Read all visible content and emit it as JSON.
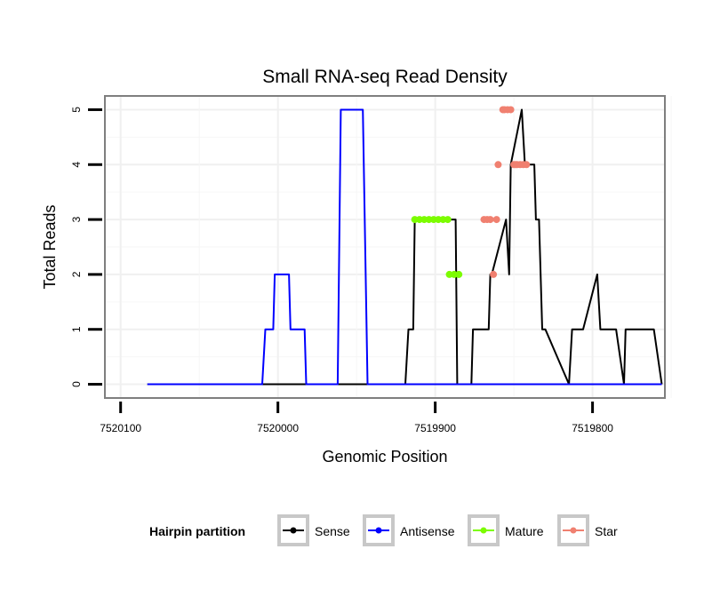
{
  "chart_data": {
    "type": "line",
    "title": "Small RNA-seq Read Density",
    "xlabel": "Genomic Position",
    "ylabel": "Total Reads",
    "x_reversed": true,
    "xlim": [
      7520110,
      7519754
    ],
    "ylim": [
      -0.25,
      5.25
    ],
    "x_ticks": [
      7520100,
      7520000,
      7519900,
      7519800
    ],
    "x_tick_labels": [
      "7520100",
      "7520000",
      "7519900",
      "7519800"
    ],
    "y_ticks": [
      0,
      1,
      2,
      3,
      4,
      5
    ],
    "y_tick_labels": [
      "0",
      "1",
      "2",
      "3",
      "4",
      "5"
    ],
    "grid": true,
    "legend": {
      "title": "Hairpin partition",
      "placement": "bottom",
      "entries": [
        "Sense",
        "Antisense",
        "Mature",
        "Star"
      ]
    },
    "series": [
      {
        "name": "Sense",
        "color": "#000000",
        "kind": "line",
        "x": [
          7520083,
          7519919,
          7519917,
          7519914,
          7519913,
          7519887,
          7519886,
          7519877,
          7519876,
          7519866,
          7519865,
          7519864,
          7519855,
          7519853,
          7519852,
          7519845,
          7519843,
          7519837,
          7519836,
          7519834,
          7519832,
          7519830,
          7519815,
          7519813,
          7519806,
          7519797,
          7519795,
          7519785,
          7519780,
          7519779,
          7519778,
          7519776,
          7519761,
          7519756
        ],
        "y": [
          0,
          0,
          1,
          1,
          3,
          3,
          0,
          0,
          1,
          1,
          2,
          2,
          3,
          2,
          4,
          5,
          4,
          4,
          3,
          3,
          1,
          1,
          0,
          1,
          1,
          2,
          1,
          1,
          0,
          1,
          1,
          1,
          1,
          0
        ]
      },
      {
        "name": "Antisense",
        "color": "#0000ff",
        "kind": "line",
        "x": [
          7520083,
          7520010,
          7520008,
          7520003,
          7520002,
          7519993,
          7519992,
          7519983,
          7519982,
          7519962,
          7519960,
          7519946,
          7519943,
          7519756
        ],
        "y": [
          0,
          0,
          1,
          1,
          2,
          2,
          1,
          1,
          0,
          0,
          5,
          5,
          0,
          0
        ]
      },
      {
        "name": "Mature",
        "color": "#7cfc00",
        "kind": "points",
        "x": [
          7519913,
          7519910,
          7519907,
          7519904,
          7519901,
          7519898,
          7519895,
          7519892,
          7519891,
          7519888,
          7519885
        ],
        "y": [
          3,
          3,
          3,
          3,
          3,
          3,
          3,
          3,
          2,
          2,
          2
        ]
      },
      {
        "name": "Star",
        "color": "#f08070",
        "kind": "points",
        "x": [
          7519869,
          7519867,
          7519865,
          7519863,
          7519861,
          7519860,
          7519857,
          7519856,
          7519854,
          7519852,
          7519850,
          7519849,
          7519848,
          7519846,
          7519844,
          7519842
        ],
        "y": [
          3,
          3,
          3,
          2,
          3,
          4,
          5,
          5,
          5,
          5,
          4,
          4,
          4,
          4,
          4,
          4
        ]
      }
    ]
  }
}
